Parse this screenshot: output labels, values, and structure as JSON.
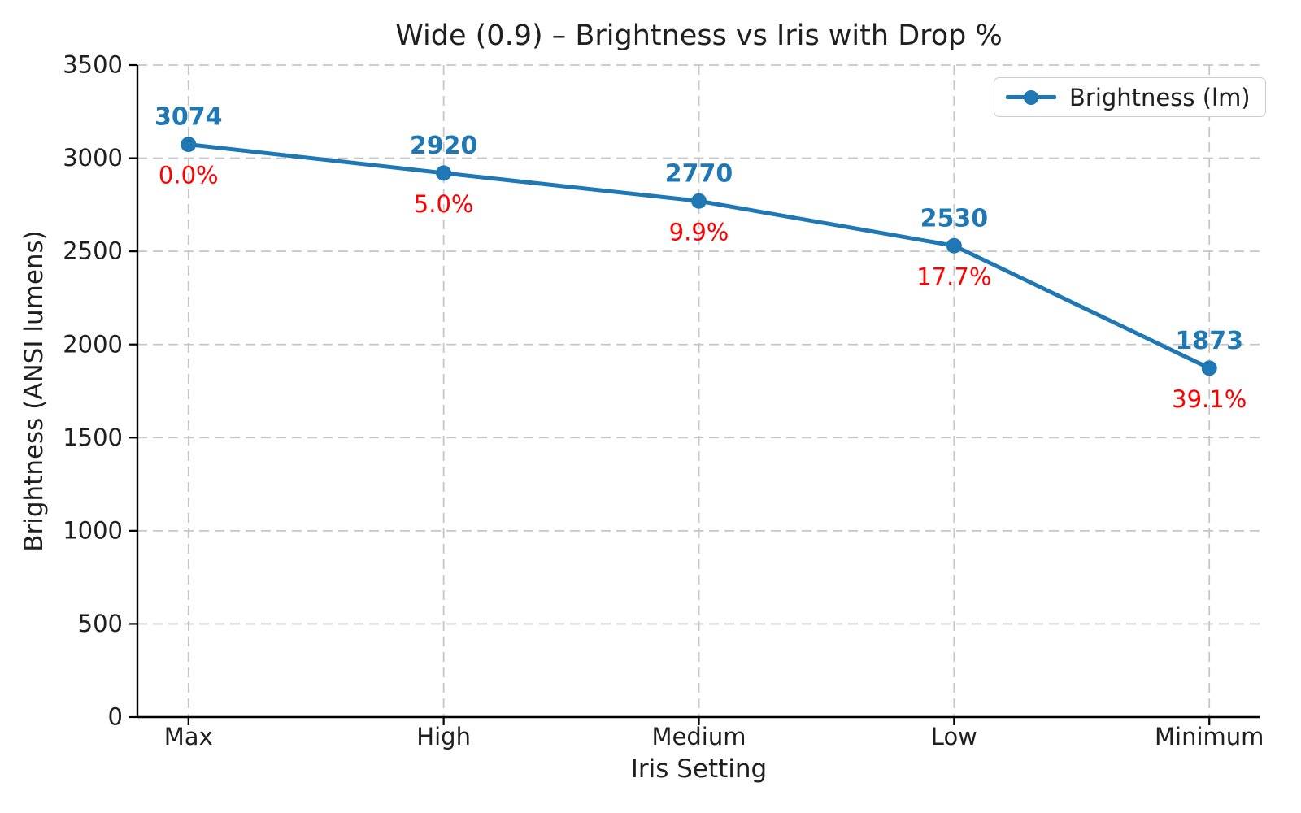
{
  "chart_data": {
    "type": "line",
    "title": "Wide (0.9) – Brightness vs Iris with Drop %",
    "xlabel": "Iris Setting",
    "ylabel": "Brightness (ANSI lumens)",
    "categories": [
      "Max",
      "High",
      "Medium",
      "Low",
      "Minimum"
    ],
    "series": [
      {
        "name": "Brightness (lm)",
        "values": [
          3074,
          2920,
          2770,
          2530,
          1873
        ],
        "value_labels": [
          "3074",
          "2920",
          "2770",
          "2530",
          "1873"
        ],
        "color": "#1f77b4"
      }
    ],
    "drop_labels": [
      "0.0%",
      "5.0%",
      "9.9%",
      "17.7%",
      "39.1%"
    ],
    "drop_label_color": "#ff0000",
    "ylim": [
      0,
      3500
    ],
    "yticks": [
      0,
      500,
      1000,
      1500,
      2000,
      2500,
      3000,
      3500
    ],
    "grid": "dashed",
    "grid_color": "#c6c6c6",
    "axis_color": "#000000",
    "tick_label_color": "#1f1f1f",
    "legend": {
      "position": "upper right",
      "entries": [
        {
          "label": "Brightness (lm)",
          "color": "#1f77b4"
        }
      ]
    }
  }
}
